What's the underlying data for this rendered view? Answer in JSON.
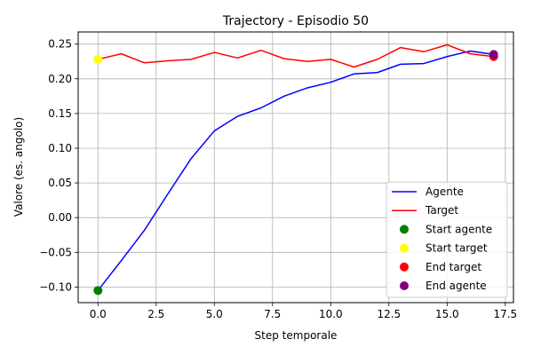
{
  "chart_data": {
    "type": "line",
    "title": "Trajectory - Episodio 50",
    "xlabel": "Step temporale",
    "ylabel": "Valore (es. angolo)",
    "xlim": [
      -0.85,
      17.85
    ],
    "ylim": [
      -0.1225,
      0.2675
    ],
    "xticks": [
      0.0,
      2.5,
      5.0,
      7.5,
      10.0,
      12.5,
      15.0,
      17.5
    ],
    "xtick_labels": [
      "0.0",
      "2.5",
      "5.0",
      "7.5",
      "10.0",
      "12.5",
      "15.0",
      "17.5"
    ],
    "yticks": [
      -0.1,
      -0.05,
      0.0,
      0.05,
      0.1,
      0.15,
      0.2,
      0.25
    ],
    "ytick_labels": [
      "−0.10",
      "−0.05",
      "0.00",
      "0.05",
      "0.10",
      "0.15",
      "0.20",
      "0.25"
    ],
    "grid": true,
    "legend_position": "lower-right",
    "x": [
      0,
      1,
      2,
      3,
      4,
      5,
      6,
      7,
      8,
      9,
      10,
      11,
      12,
      13,
      14,
      15,
      16,
      17
    ],
    "series": [
      {
        "name": "Agente",
        "kind": "line",
        "color": "#0000ff",
        "values": [
          -0.105,
          -0.062,
          -0.018,
          0.034,
          0.085,
          0.125,
          0.146,
          0.158,
          0.175,
          0.187,
          0.195,
          0.207,
          0.209,
          0.221,
          0.222,
          0.232,
          0.24,
          0.235
        ]
      },
      {
        "name": "Target",
        "kind": "line",
        "color": "#ff0000",
        "values": [
          0.228,
          0.236,
          0.223,
          0.226,
          0.228,
          0.238,
          0.23,
          0.241,
          0.229,
          0.225,
          0.228,
          0.217,
          0.228,
          0.245,
          0.239,
          0.249,
          0.236,
          0.232
        ]
      }
    ],
    "markers": [
      {
        "name": "Start agente",
        "color": "#008000",
        "x": 0,
        "y": -0.105
      },
      {
        "name": "Start target",
        "color": "#ffff00",
        "x": 0,
        "y": 0.228
      },
      {
        "name": "End target",
        "color": "#ff0000",
        "x": 17,
        "y": 0.232
      },
      {
        "name": "End agente",
        "color": "#800080",
        "x": 17,
        "y": 0.235
      }
    ]
  }
}
